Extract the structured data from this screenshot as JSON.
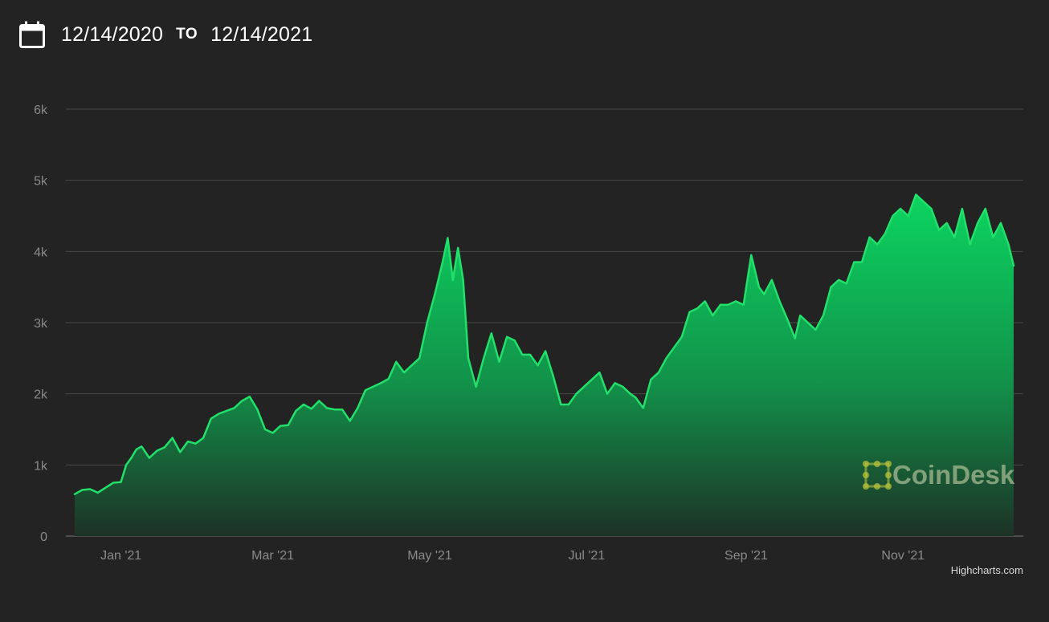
{
  "header": {
    "start_date": "12/14/2020",
    "to_label": "TO",
    "end_date": "12/14/2021",
    "calendar_icon": "calendar-icon"
  },
  "credits": "Highcharts.com",
  "watermark": "CoinDesk",
  "colors": {
    "background": "#232323",
    "line": "#22e06a",
    "area_top": "#0bd560",
    "area_bottom": "#1d3226",
    "grid": "#4a4a4a",
    "tick_text": "#8a8a8a",
    "watermark_accent": "#b8c23c"
  },
  "chart_data": {
    "type": "area",
    "title": "",
    "xlabel": "",
    "ylabel": "",
    "ylim": [
      0,
      6000
    ],
    "y_ticks": [
      "0",
      "1k",
      "2k",
      "3k",
      "4k",
      "5k",
      "6k"
    ],
    "x_ticks": [
      "Jan '21",
      "Mar '21",
      "May '21",
      "Jul '21",
      "Sep '21",
      "Nov '21"
    ],
    "x_tick_dates": [
      "2021-01-01",
      "2021-03-01",
      "2021-05-01",
      "2021-07-01",
      "2021-09-01",
      "2021-11-01"
    ],
    "x_range": [
      "2020-12-14",
      "2021-12-14"
    ],
    "grid": true,
    "legend": "none",
    "series": [
      {
        "x": [
          "2020-12-14",
          "2020-12-17",
          "2020-12-20",
          "2020-12-23",
          "2020-12-26",
          "2020-12-29",
          "2021-01-01",
          "2021-01-03",
          "2021-01-05",
          "2021-01-07",
          "2021-01-09",
          "2021-01-12",
          "2021-01-15",
          "2021-01-18",
          "2021-01-21",
          "2021-01-24",
          "2021-01-27",
          "2021-01-30",
          "2021-02-02",
          "2021-02-05",
          "2021-02-08",
          "2021-02-11",
          "2021-02-14",
          "2021-02-17",
          "2021-02-20",
          "2021-02-23",
          "2021-02-26",
          "2021-03-01",
          "2021-03-04",
          "2021-03-07",
          "2021-03-10",
          "2021-03-13",
          "2021-03-16",
          "2021-03-19",
          "2021-03-22",
          "2021-03-25",
          "2021-03-28",
          "2021-03-31",
          "2021-04-03",
          "2021-04-06",
          "2021-04-09",
          "2021-04-12",
          "2021-04-15",
          "2021-04-18",
          "2021-04-21",
          "2021-04-24",
          "2021-04-27",
          "2021-04-30",
          "2021-05-03",
          "2021-05-06",
          "2021-05-08",
          "2021-05-10",
          "2021-05-12",
          "2021-05-14",
          "2021-05-16",
          "2021-05-19",
          "2021-05-22",
          "2021-05-25",
          "2021-05-28",
          "2021-05-31",
          "2021-06-03",
          "2021-06-06",
          "2021-06-09",
          "2021-06-12",
          "2021-06-15",
          "2021-06-18",
          "2021-06-21",
          "2021-06-24",
          "2021-06-27",
          "2021-06-30",
          "2021-07-03",
          "2021-07-06",
          "2021-07-09",
          "2021-07-12",
          "2021-07-15",
          "2021-07-18",
          "2021-07-20",
          "2021-07-23",
          "2021-07-26",
          "2021-07-29",
          "2021-08-01",
          "2021-08-04",
          "2021-08-07",
          "2021-08-10",
          "2021-08-13",
          "2021-08-16",
          "2021-08-19",
          "2021-08-22",
          "2021-08-25",
          "2021-08-28",
          "2021-08-31",
          "2021-09-03",
          "2021-09-06",
          "2021-09-08",
          "2021-09-11",
          "2021-09-14",
          "2021-09-17",
          "2021-09-20",
          "2021-09-22",
          "2021-09-25",
          "2021-09-28",
          "2021-10-01",
          "2021-10-04",
          "2021-10-07",
          "2021-10-10",
          "2021-10-13",
          "2021-10-16",
          "2021-10-19",
          "2021-10-22",
          "2021-10-25",
          "2021-10-28",
          "2021-10-31",
          "2021-11-03",
          "2021-11-06",
          "2021-11-09",
          "2021-11-12",
          "2021-11-15",
          "2021-11-18",
          "2021-11-21",
          "2021-11-24",
          "2021-11-27",
          "2021-11-30",
          "2021-12-03",
          "2021-12-06",
          "2021-12-09",
          "2021-12-12",
          "2021-12-14"
        ],
        "values": [
          590,
          650,
          660,
          610,
          680,
          750,
          760,
          1000,
          1100,
          1220,
          1260,
          1100,
          1200,
          1250,
          1380,
          1180,
          1330,
          1300,
          1380,
          1650,
          1720,
          1760,
          1800,
          1900,
          1960,
          1780,
          1500,
          1450,
          1550,
          1560,
          1760,
          1850,
          1790,
          1900,
          1800,
          1780,
          1780,
          1620,
          1800,
          2050,
          2100,
          2150,
          2210,
          2450,
          2300,
          2400,
          2500,
          3000,
          3400,
          3850,
          4190,
          3600,
          4050,
          3600,
          2500,
          2100,
          2500,
          2850,
          2450,
          2800,
          2750,
          2550,
          2550,
          2400,
          2600,
          2250,
          1850,
          1850,
          2000,
          2100,
          2200,
          2300,
          2000,
          2150,
          2100,
          2000,
          1950,
          1800,
          2200,
          2300,
          2500,
          2650,
          2800,
          3150,
          3200,
          3300,
          3100,
          3250,
          3250,
          3300,
          3250,
          3950,
          3500,
          3400,
          3600,
          3300,
          3050,
          2780,
          3100,
          3000,
          2900,
          3100,
          3500,
          3600,
          3550,
          3850,
          3850,
          4200,
          4100,
          4250,
          4500,
          4600,
          4500,
          4800,
          4700,
          4600,
          4300,
          4400,
          4200,
          4600,
          4100,
          4400,
          4600,
          4200,
          4400,
          4100,
          3800
        ]
      }
    ]
  }
}
